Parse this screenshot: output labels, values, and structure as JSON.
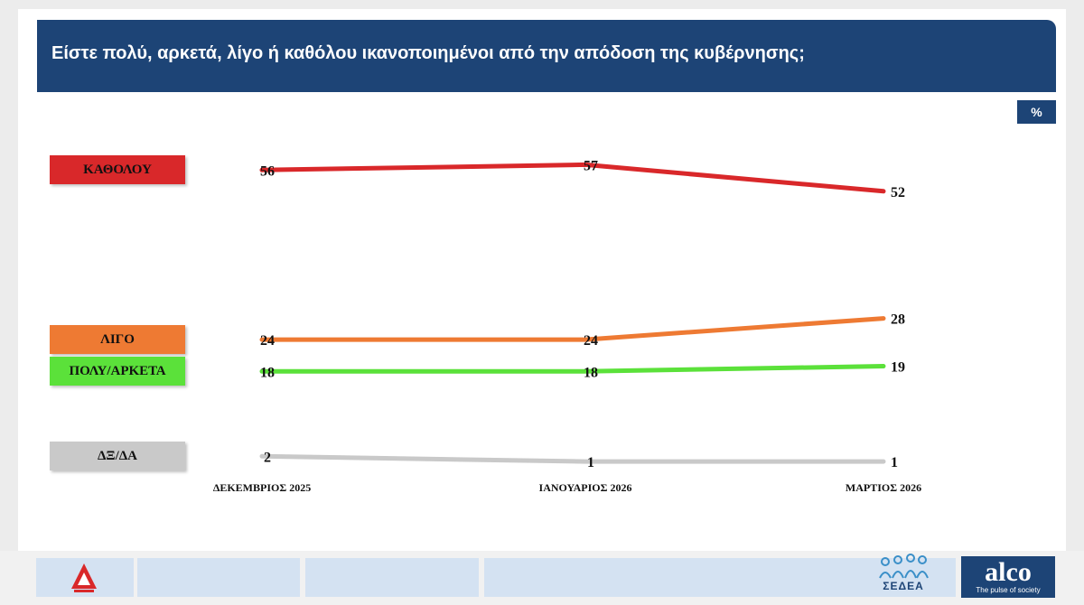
{
  "title": "Είστε πολύ, αρκετά, λίγο ή καθόλου ικανοποιημένοι από την απόδοση της κυβέρνησης;",
  "unit_label": "%",
  "chart_data": {
    "type": "line",
    "title": "Είστε πολύ, αρκετά, λίγο ή καθόλου ικανοποιημένοι από την απόδοση της κυβέρνησης;",
    "categories": [
      "ΔΕΚΕΜΒΡΙΟΣ 2025",
      "ΙΑΝΟΥΑΡΙΟΣ 2026",
      "ΜΑΡΤΙΟΣ 2026"
    ],
    "ylim": [
      0,
      60
    ],
    "grid": false,
    "legend_placement": "left",
    "series": [
      {
        "name": "ΚΑΘΟΛΟΥ",
        "values": [
          56,
          57,
          52
        ],
        "color": "#d9282a"
      },
      {
        "name": "ΛΙΓΟ",
        "values": [
          24,
          24,
          28
        ],
        "color": "#ee7a33"
      },
      {
        "name": "ΠΟΛΥ/ΑΡΚΕΤΑ",
        "values": [
          18,
          18,
          19
        ],
        "color": "#5be13a"
      },
      {
        "name": "ΔΞ/ΔΑ",
        "values": [
          2,
          1,
          1
        ],
        "color": "#c9c9c9"
      }
    ]
  },
  "footer": {
    "sedea_text": "ΣΕΔΕΑ",
    "alco_name": "alco",
    "alco_tagline": "The pulse of society",
    "channel_logo_icon": "alpha-channel-logo-icon"
  }
}
